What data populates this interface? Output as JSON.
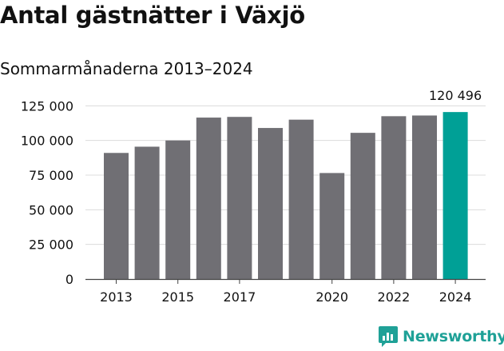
{
  "title": "Antal gästnätter i Växjö",
  "subtitle": "Sommarmånaderna 2013–2024",
  "brand": {
    "name": "Newsworthy",
    "color": "#1fa197",
    "icon": "chart-speech-bubble-icon"
  },
  "chart_data": {
    "type": "bar",
    "categories": [
      "2013",
      "2014",
      "2015",
      "2016",
      "2017",
      "2018",
      "2019",
      "2020",
      "2021",
      "2022",
      "2023",
      "2024"
    ],
    "values": [
      91000,
      95500,
      100000,
      116500,
      117000,
      109000,
      115000,
      76500,
      105500,
      117500,
      118000,
      120496
    ],
    "highlight_index": 11,
    "highlight_label": "120 496",
    "x_tick_labels": [
      "2013",
      "2015",
      "2017",
      "2020",
      "2022",
      "2024"
    ],
    "y_ticks": [
      0,
      25000,
      50000,
      75000,
      100000,
      125000
    ],
    "y_tick_labels": [
      "0",
      "25 000",
      "50 000",
      "75 000",
      "100 000",
      "125 000"
    ],
    "ylim": [
      0,
      135000
    ],
    "grid": true,
    "colors": {
      "bar": "#706f74",
      "highlight": "#00a096",
      "grid": "#dcdcdc"
    }
  }
}
